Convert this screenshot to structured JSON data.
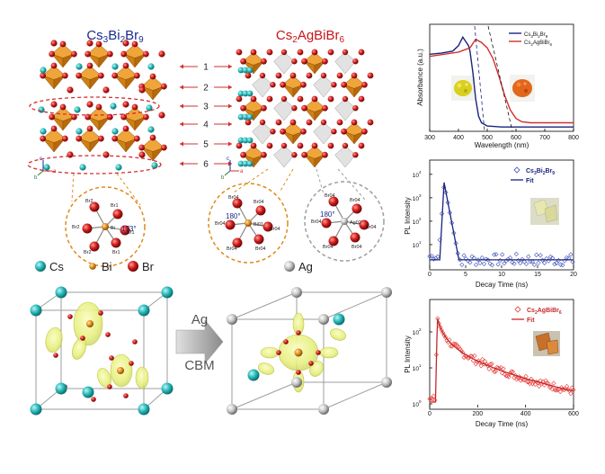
{
  "structures": {
    "left_title_main": "Cs",
    "left_title_sub1": "3",
    "left_title_mid": "Bi",
    "left_title_sub2": "2",
    "left_title_end": "Br",
    "left_title_sub3": "9",
    "right_title_main": "Cs",
    "right_title_sub1": "2",
    "right_title_end": "AgBiBr",
    "right_title_sub2": "6",
    "layer_numbers": [
      "1",
      "2",
      "3",
      "4",
      "5",
      "6"
    ],
    "axes": {
      "a": "a",
      "b": "b",
      "c": "c"
    }
  },
  "octahedra": {
    "bi_left": {
      "labels": [
        "Br2",
        "Br1",
        "Br2",
        "Br1",
        "Br2",
        "Br1"
      ],
      "angle": "173°",
      "center": "Bi"
    },
    "bi_right": {
      "labels": [
        "Br04",
        "Br04",
        "Br04",
        "Br04",
        "Br04",
        "Br04"
      ],
      "angle": "180°",
      "center": "Bi01"
    },
    "ag": {
      "labels": [
        "Br04",
        "Br04",
        "Br04",
        "Br04",
        "Br04",
        "Br04"
      ],
      "angle": "180°",
      "center": "Ag02"
    }
  },
  "legend": {
    "items": [
      {
        "label": "Cs",
        "color": "#22b5b5"
      },
      {
        "label": "Bi",
        "color": "#e08a1a"
      },
      {
        "label": "Br",
        "color": "#c8151b"
      },
      {
        "label": "Ag",
        "color": "#b8b8b8"
      }
    ]
  },
  "cbm": {
    "arrow_top": "Ag",
    "arrow_bottom": "CBM"
  },
  "chart_data": [
    {
      "type": "line",
      "title": "",
      "xlabel": "Wavelength (nm)",
      "ylabel": "Absorbance (a.u.)",
      "xlim": [
        300,
        800
      ],
      "xticks": [
        "300",
        "400",
        "500",
        "600",
        "700",
        "800"
      ],
      "series": [
        {
          "name": "Cs3Bi2Br9",
          "legend_main": "Cs",
          "legend_sub1": "3",
          "legend_mid": "Bi",
          "legend_sub2": "2",
          "legend_end": "Br",
          "legend_sub3": "9",
          "color": "#1a237e",
          "x": [
            300,
            340,
            380,
            400,
            415,
            425,
            435,
            440,
            450,
            460,
            470,
            480,
            500,
            550,
            600,
            700,
            800
          ],
          "y": [
            0.72,
            0.73,
            0.75,
            0.8,
            0.88,
            0.84,
            0.8,
            0.75,
            0.55,
            0.3,
            0.14,
            0.08,
            0.05,
            0.04,
            0.04,
            0.04,
            0.04
          ]
        },
        {
          "name": "Cs2AgBiBr6",
          "legend_main": "Cs",
          "legend_sub1": "2",
          "legend_end": "AgBiBr",
          "legend_sub2": "6",
          "color": "#d32f2f",
          "x": [
            300,
            350,
            400,
            440,
            460,
            480,
            500,
            520,
            540,
            560,
            580,
            600,
            620,
            650,
            700,
            800
          ],
          "y": [
            0.7,
            0.72,
            0.74,
            0.78,
            0.86,
            0.83,
            0.78,
            0.68,
            0.52,
            0.34,
            0.2,
            0.12,
            0.09,
            0.08,
            0.08,
            0.08
          ]
        }
      ]
    },
    {
      "type": "scatter",
      "title": "",
      "xlabel": "Decay Time (ns)",
      "ylabel": "PL Intensity",
      "xlim": [
        0,
        20
      ],
      "xticks": [
        "0",
        "5",
        "10",
        "15",
        "20"
      ],
      "yticks": [
        "10",
        "10",
        "10",
        "10"
      ],
      "yexp": [
        "1",
        "2",
        "3",
        "4"
      ],
      "ylog": true,
      "series": [
        {
          "name": "Cs3Bi2Br9",
          "legend_main": "Cs",
          "legend_sub1": "3",
          "legend_mid": "Bi",
          "legend_sub2": "2",
          "legend_end": "Br",
          "legend_sub3": "9",
          "marker": "diamond",
          "color": "#3f51b5"
        },
        {
          "name": "Fit",
          "color": "#1a237e"
        }
      ]
    },
    {
      "type": "scatter",
      "title": "",
      "xlabel": "Decay Time (ns)",
      "ylabel": "PL Intensity",
      "xlim": [
        0,
        600
      ],
      "xticks": [
        "0",
        "200",
        "400",
        "600"
      ],
      "yticks": [
        "10",
        "10",
        "10"
      ],
      "yexp": [
        "0",
        "1",
        "2"
      ],
      "ylog": true,
      "series": [
        {
          "name": "Cs2AgBiBr6",
          "legend_main": "Cs",
          "legend_sub1": "2",
          "legend_end": "AgBiBr",
          "legend_sub2": "6",
          "marker": "diamond",
          "color": "#e53935"
        },
        {
          "name": "Fit",
          "color": "#c62828"
        }
      ]
    }
  ]
}
